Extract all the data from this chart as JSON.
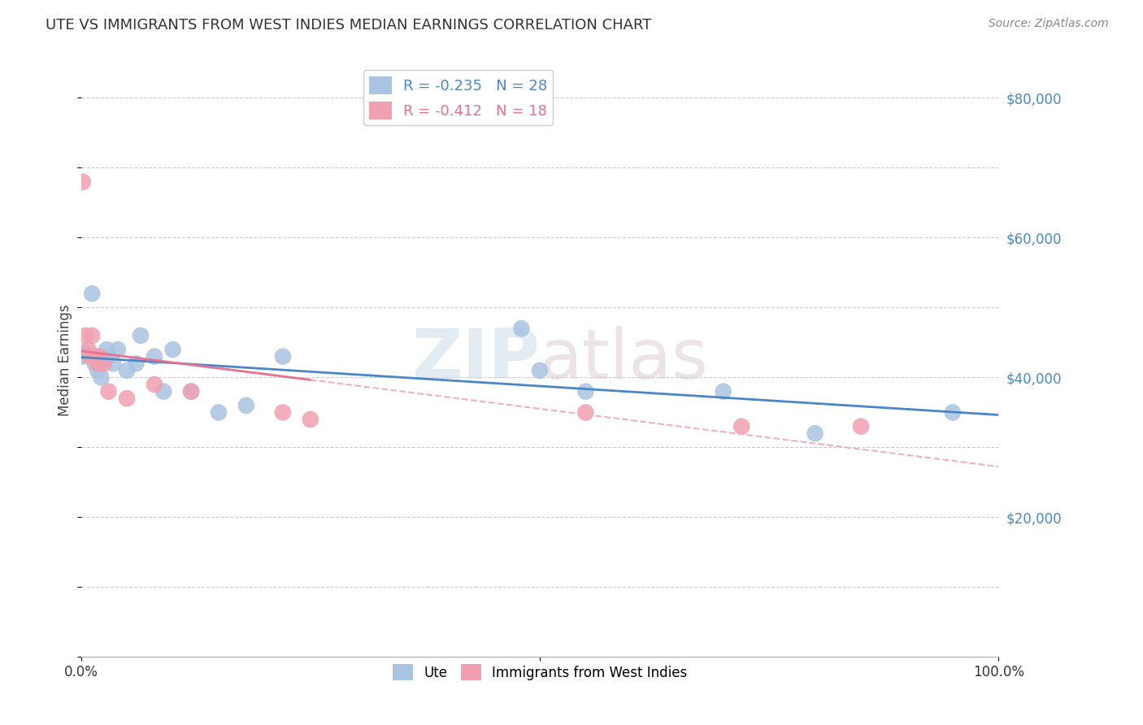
{
  "title": "UTE VS IMMIGRANTS FROM WEST INDIES MEDIAN EARNINGS CORRELATION CHART",
  "source": "Source: ZipAtlas.com",
  "ylabel": "Median Earnings",
  "xlim": [
    0,
    1.0
  ],
  "ylim": [
    0,
    85000
  ],
  "blue_R": "-0.235",
  "blue_N": "28",
  "pink_R": "-0.412",
  "pink_N": "18",
  "blue_color": "#a8c4e0",
  "pink_color": "#f0a0b0",
  "blue_line_color": "#4a86c8",
  "pink_line_color": "#e87090",
  "pink_dash_color": "#f0b0c0",
  "watermark_zip": "ZIP",
  "watermark_atlas": "atlas",
  "blue_x": [
    0.002,
    0.005,
    0.012,
    0.015,
    0.018,
    0.02,
    0.022,
    0.025,
    0.028,
    0.03,
    0.035,
    0.04,
    0.05,
    0.06,
    0.065,
    0.08,
    0.09,
    0.1,
    0.12,
    0.15,
    0.18,
    0.22,
    0.48,
    0.5,
    0.55,
    0.7,
    0.8,
    0.95
  ],
  "blue_y": [
    43000,
    43500,
    52000,
    42000,
    41000,
    43000,
    40000,
    42500,
    44000,
    43000,
    42000,
    44000,
    41000,
    42000,
    46000,
    43000,
    38000,
    44000,
    38000,
    35000,
    36000,
    43000,
    47000,
    41000,
    38000,
    38000,
    32000,
    35000
  ],
  "pink_x": [
    0.002,
    0.005,
    0.008,
    0.01,
    0.012,
    0.015,
    0.018,
    0.02,
    0.025,
    0.03,
    0.05,
    0.08,
    0.12,
    0.22,
    0.25,
    0.55,
    0.72,
    0.85
  ],
  "pink_y": [
    68000,
    46000,
    44000,
    43000,
    46000,
    43000,
    42000,
    43000,
    42000,
    38000,
    37000,
    39000,
    38000,
    35000,
    34000,
    35000,
    33000,
    33000
  ]
}
